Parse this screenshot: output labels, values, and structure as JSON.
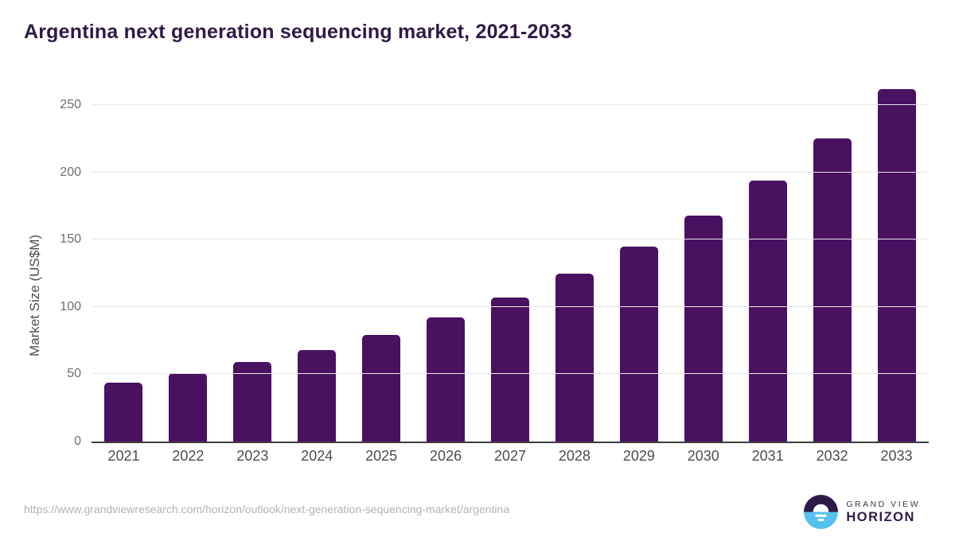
{
  "title": "Argentina next generation sequencing market, 2021-2033",
  "chart_data": {
    "type": "bar",
    "title": "Argentina next generation sequencing market, 2021-2033",
    "categories": [
      "2021",
      "2022",
      "2023",
      "2024",
      "2025",
      "2026",
      "2027",
      "2028",
      "2029",
      "2030",
      "2031",
      "2032",
      "2033"
    ],
    "values": [
      44,
      51,
      59,
      68,
      79,
      92,
      107,
      125,
      145,
      168,
      194,
      225,
      262
    ],
    "xlabel": "",
    "ylabel": "Market Size (US$M)",
    "ylim": [
      0,
      263
    ],
    "yticks": [
      0,
      50,
      100,
      150,
      200,
      250
    ],
    "grid": true,
    "legend": "none",
    "bar_color": "#4a1161"
  },
  "colors": {
    "bar": "#4a1161",
    "title_text": "#2e1a47",
    "gridline": "#e7e7e7",
    "axis_line": "#3c3c3c",
    "y_tick_text": "#6e6e6e",
    "x_tick_text": "#4d4d4d",
    "url_text": "#b3b3b3",
    "logo_blue": "#56c1ec",
    "logo_purple": "#2e1a47"
  },
  "footer": {
    "source_url": "https://www.grandviewresearch.com/horizon/outlook/next-generation-sequencing-market/argentina",
    "logo": {
      "line1": "GRAND VIEW",
      "line2": "HORIZON"
    }
  }
}
